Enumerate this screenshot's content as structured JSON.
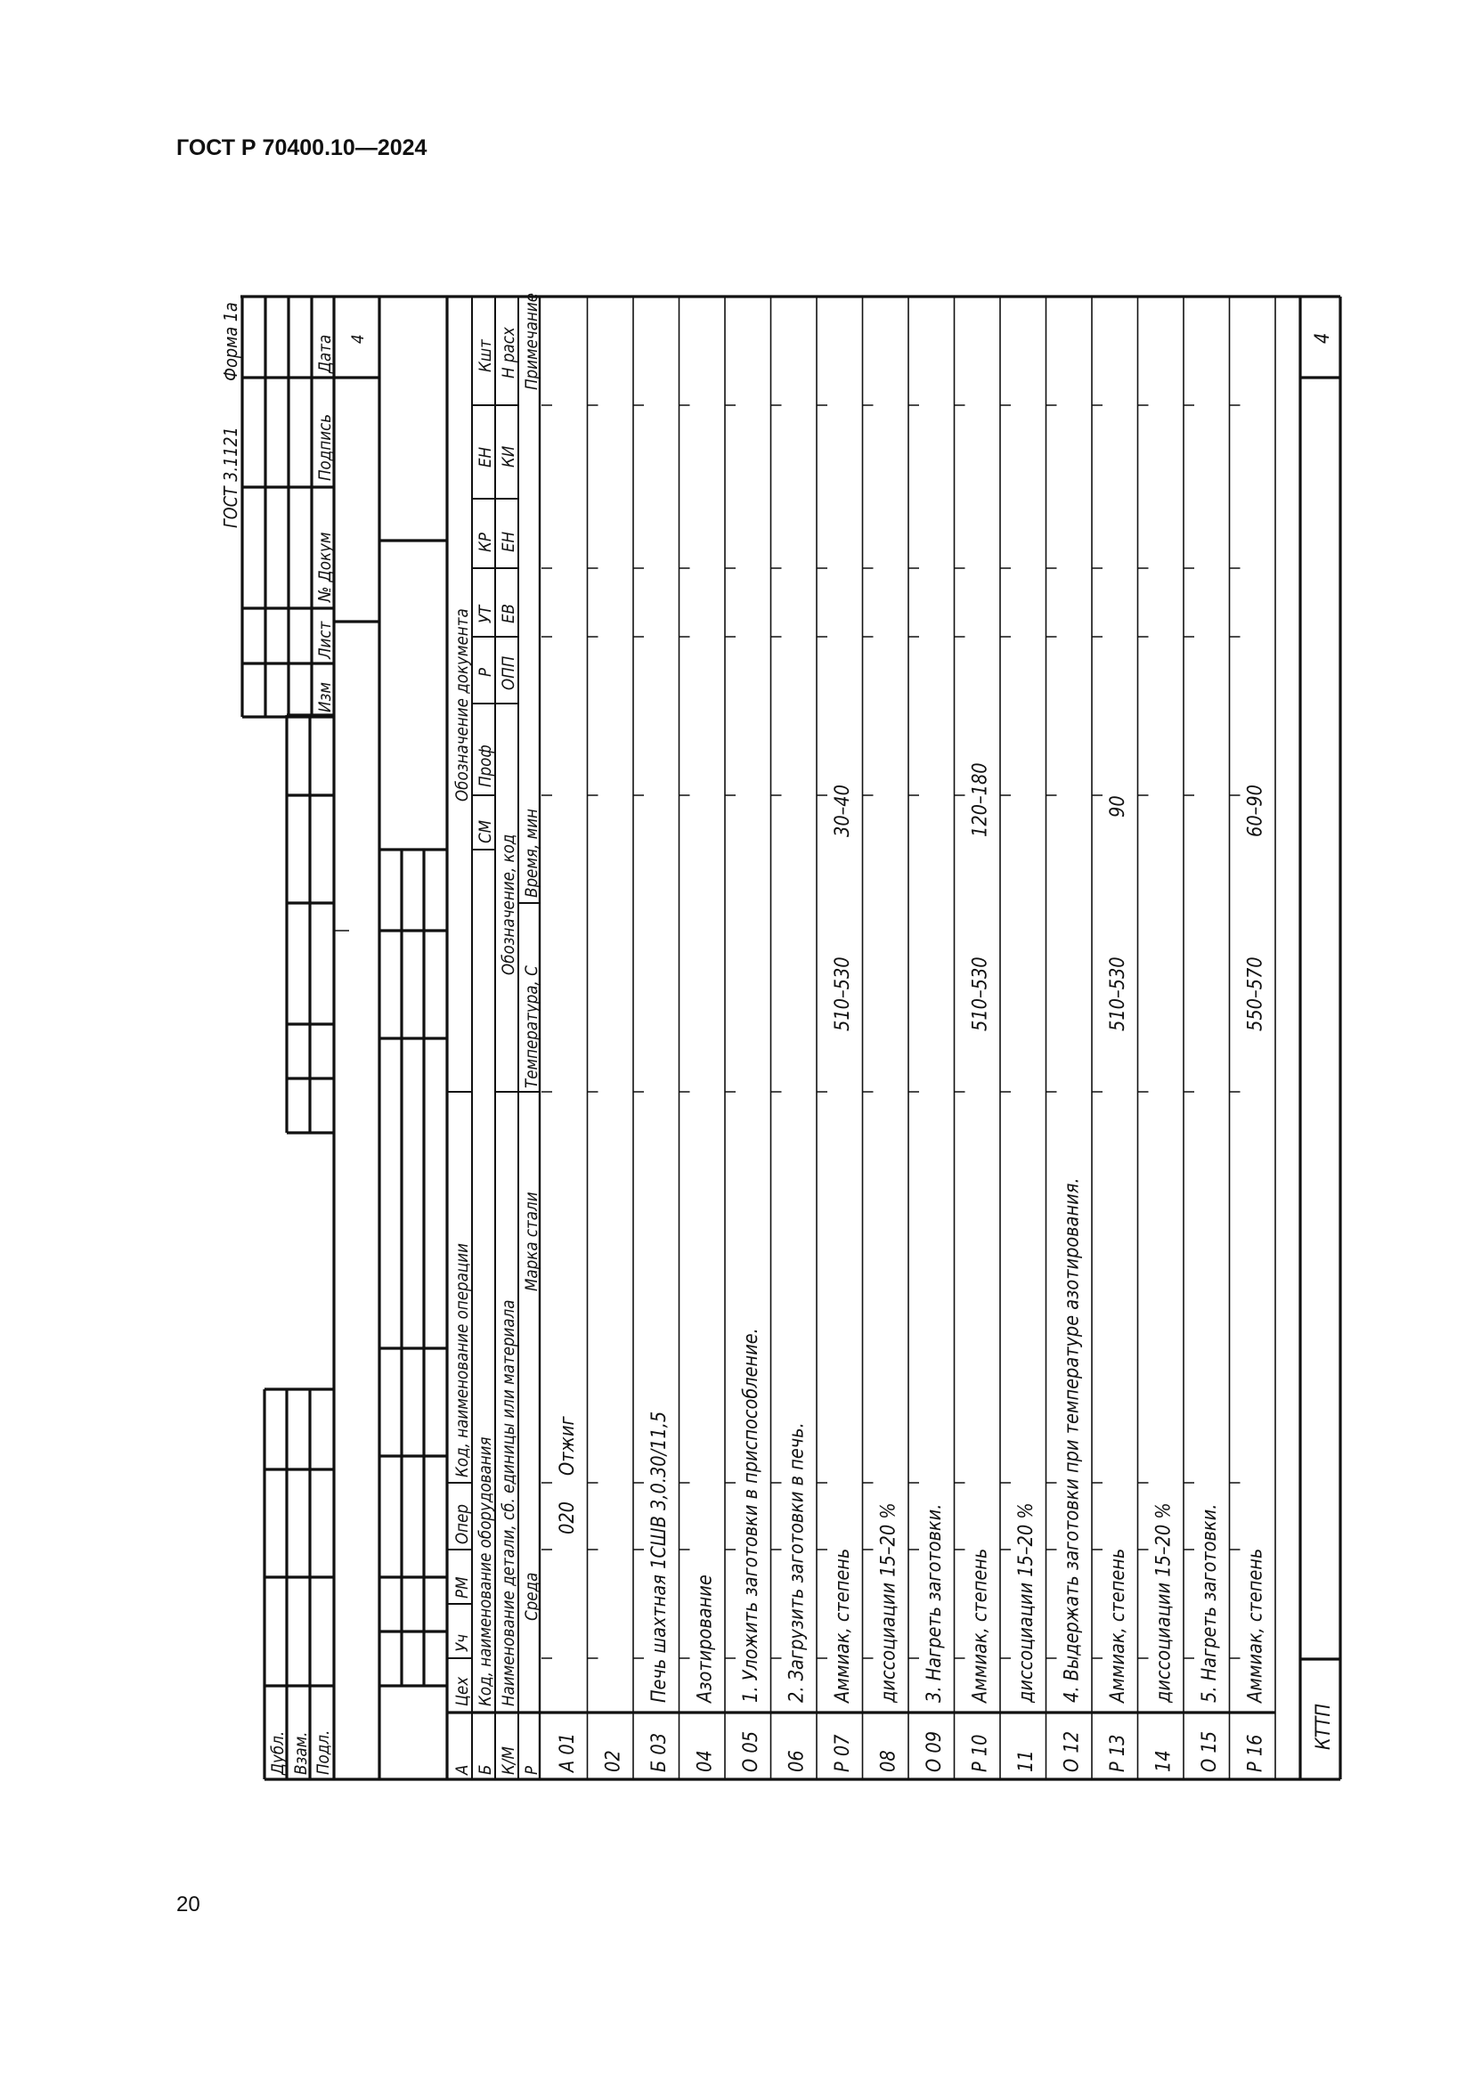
{
  "page": {
    "header": "ГОСТ Р 70400.10—2024",
    "page_number": "20"
  },
  "form": {
    "standard": "ГОСТ 3.1121",
    "form_name": "Форма 1а",
    "revision_block": {
      "izm": "Изм",
      "list": "Лист",
      "doc_no": "№ Докум",
      "signature": "Подпись",
      "date": "Дата",
      "sheet_value": "4"
    },
    "side_block": {
      "dubl": "Дубл.",
      "vzam": "Взам.",
      "podl": "Подл."
    },
    "header_rows": {
      "a": {
        "code": "А",
        "tseh": "Цех",
        "uch": "Уч",
        "rm": "РМ",
        "oper": "Опер",
        "op_name": "Код, наименование операции",
        "doc": "Обозначение документа"
      },
      "b": {
        "code": "Б",
        "equipment": "Код, наименование оборудования",
        "sm": "СМ",
        "prof": "Проф",
        "r": "Р",
        "ut": "УТ",
        "kr": "КР",
        "en": "ЕН",
        "ksht": "Кшт"
      },
      "km": {
        "code": "К/М",
        "name": "Наименование детали, сб. единицы или материала",
        "designation": "Обозначение, код",
        "opp": "ОПП",
        "ev": "ЕВ",
        "en": "ЕН",
        "ki": "КИ",
        "n_rash": "Н расх"
      },
      "p": {
        "code": "Р",
        "medium": "Среда",
        "steel": "Марка стали",
        "temperature": "Температура, С",
        "time": "Время, мин",
        "note": "Примечание"
      }
    },
    "rows": [
      {
        "code": "А 01",
        "op": "020",
        "text": "Отжиг"
      },
      {
        "code": "02"
      },
      {
        "code": "Б 03",
        "text": "Печь шахтная 1СШВ 3,0.30/11,5"
      },
      {
        "code": "04",
        "text": "Азотирование"
      },
      {
        "code": "О 05",
        "text": "1. Уложить заготовки в приспособление."
      },
      {
        "code": "06",
        "text": "2. Загрузить заготовки в печь."
      },
      {
        "code": "Р 07",
        "text": "Аммиак, степень",
        "temp": "510–530",
        "time": "30–40"
      },
      {
        "code": "08",
        "text": "диссоциации 15–20 %"
      },
      {
        "code": "О 09",
        "text": "3. Нагреть заготовки."
      },
      {
        "code": "Р 10",
        "text": "Аммиак, степень",
        "temp": "510–530",
        "time": "120–180"
      },
      {
        "code": "11",
        "text": "диссоциации 15–20 %"
      },
      {
        "code": "О 12",
        "text": "4. Выдержать заготовки при температуре азотирования."
      },
      {
        "code": "Р 13",
        "text": "Аммиак, степень",
        "temp": "510–530",
        "time": "90"
      },
      {
        "code": "14",
        "text": "диссоциации 15–20 %"
      },
      {
        "code": "О 15",
        "text": "5. Нагреть заготовки."
      },
      {
        "code": "Р 16",
        "text": "Аммиак, степень",
        "temp": "550–570",
        "time": "60–90"
      }
    ],
    "footer": {
      "label": "КТТП",
      "sheet": "4"
    }
  }
}
